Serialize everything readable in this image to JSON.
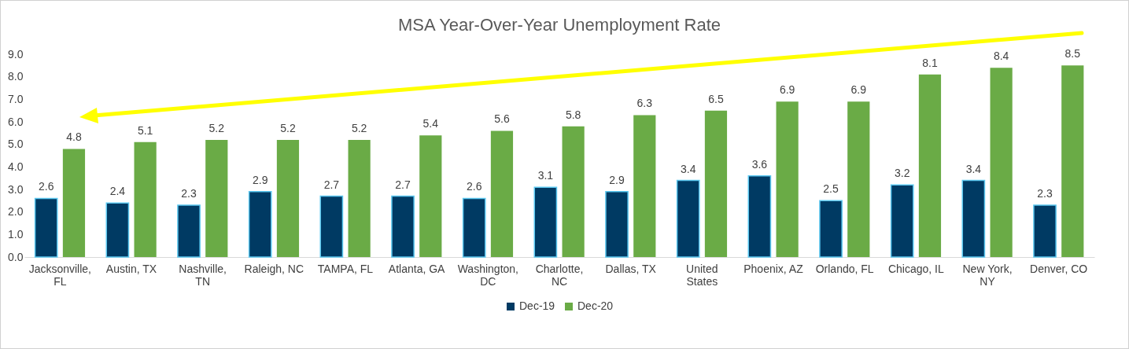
{
  "chart_data": {
    "type": "bar",
    "title": "MSA Year-Over-Year Unemployment Rate",
    "categories": [
      "Jacksonville,\nFL",
      "Austin, TX",
      "Nashville,\nTN",
      "Raleigh, NC",
      "TAMPA, FL",
      "Atlanta, GA",
      "Washington,\nDC",
      "Charlotte,\nNC",
      "Dallas, TX",
      "United\nStates",
      "Phoenix, AZ",
      "Orlando, FL",
      "Chicago, IL",
      "New York,\nNY",
      "Denver, CO"
    ],
    "series": [
      {
        "name": "Dec-19",
        "color": "#003a63",
        "values": [
          2.6,
          2.4,
          2.3,
          2.9,
          2.7,
          2.7,
          2.6,
          3.1,
          2.9,
          3.4,
          3.6,
          2.5,
          3.2,
          3.4,
          2.3
        ]
      },
      {
        "name": "Dec-20",
        "color": "#6aab46",
        "values": [
          4.8,
          5.1,
          5.2,
          5.2,
          5.2,
          5.4,
          5.6,
          5.8,
          6.3,
          6.5,
          6.9,
          6.9,
          8.1,
          8.4,
          8.5
        ]
      }
    ],
    "ylim": [
      0,
      9
    ],
    "yticks": [
      {
        "value": 0,
        "label": "0.0"
      },
      {
        "value": 1,
        "label": "1.0"
      },
      {
        "value": 2,
        "label": "2.0"
      },
      {
        "value": 3,
        "label": "3.0"
      },
      {
        "value": 4,
        "label": "4.0"
      },
      {
        "value": 5,
        "label": "5.0"
      },
      {
        "value": 6,
        "label": "6.0"
      },
      {
        "value": 7,
        "label": "7.0"
      },
      {
        "value": 8,
        "label": "8.0"
      },
      {
        "value": 9,
        "label": "9.0"
      }
    ],
    "data_labels": true,
    "grid": false,
    "legend": "bottom"
  }
}
